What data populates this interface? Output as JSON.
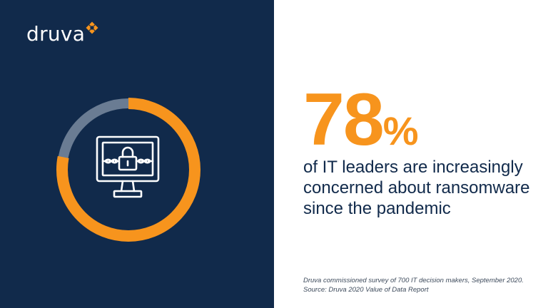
{
  "brand": {
    "name": "druva",
    "logo_icon": "druva-logo-mark",
    "navy": "#112a4b",
    "orange": "#f7941d",
    "ring_track": "#6a7c93"
  },
  "illustration": {
    "icon": "locked-monitor-icon",
    "ring_fill_percent": 78
  },
  "stat": {
    "value": "78",
    "unit": "%",
    "description_lines": [
      "of IT leaders are increasingly",
      "concerned about ransomware",
      "since the pandemic"
    ]
  },
  "footnote": {
    "lines": [
      "Druva commissioned survey of 700 IT decision makers, September 2020.",
      "Source: Druva 2020 Value of Data Report"
    ]
  }
}
